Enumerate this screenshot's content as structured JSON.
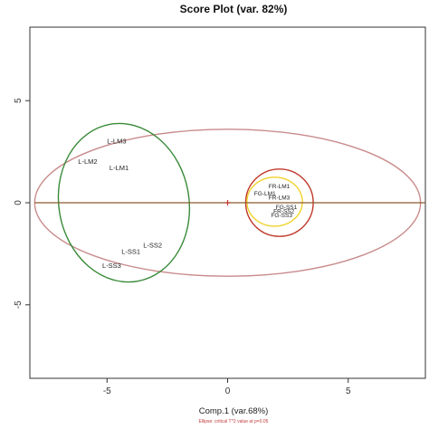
{
  "chart_data": {
    "type": "scatter",
    "title": "Score Plot (var. 82%)",
    "xlabel": "Comp.1 (var.68%)",
    "caption": "Ellipse: critical T^2 value at p=0.05",
    "xlim": [
      -8.2,
      8.2
    ],
    "ylim": [
      -8.6,
      8.6
    ],
    "xticks": [
      -5,
      0,
      5
    ],
    "xtick_labels": [
      "-5",
      "0",
      "5"
    ],
    "yticks": [
      -5,
      0,
      5
    ],
    "ytick_labels": [
      "-5",
      "0",
      "5"
    ],
    "grid": false,
    "points": [
      {
        "label": "L-LM3",
        "x": -5.0,
        "y": 2.9
      },
      {
        "label": "L-LM2",
        "x": -6.2,
        "y": 1.9
      },
      {
        "label": "L-LM1",
        "x": -4.9,
        "y": 1.6
      },
      {
        "label": "L-SS2",
        "x": -3.5,
        "y": -2.2
      },
      {
        "label": "L-SS1",
        "x": -4.4,
        "y": -2.5
      },
      {
        "label": "L-SS3",
        "x": -5.2,
        "y": -3.2
      },
      {
        "label": "FR-LM1",
        "x": 1.7,
        "y": 0.7
      },
      {
        "label": "FG-LM1",
        "x": 1.1,
        "y": 0.35
      },
      {
        "label": "FR-LM3",
        "x": 1.7,
        "y": 0.15
      },
      {
        "label": "FG-SS1",
        "x": 2.0,
        "y": -0.3
      },
      {
        "label": "FR-SS2",
        "x": 1.9,
        "y": -0.5
      },
      {
        "label": "FG-SS3",
        "x": 1.8,
        "y": -0.7
      }
    ],
    "ellipses": [
      {
        "name": "critical-t2",
        "cx": 0,
        "cy": 0,
        "rx": 8.0,
        "ry": 3.6,
        "color": "#c98b8b"
      },
      {
        "name": "group-L",
        "cx": -4.3,
        "cy": 0.0,
        "rx": 2.7,
        "ry": 3.9,
        "angle": 10,
        "color": "#3a8a3a"
      },
      {
        "name": "group-FR-red",
        "cx": 2.15,
        "cy": 0.0,
        "rx": 1.4,
        "ry": 1.65,
        "color": "#c0392b"
      },
      {
        "name": "group-FG-yellow",
        "cx": 1.95,
        "cy": 0.05,
        "rx": 1.15,
        "ry": 1.2,
        "color": "#f1d22a"
      }
    ],
    "center_marker": {
      "x": 0,
      "y": 0,
      "color": "#c0392b"
    },
    "axis_line_color": "#8b5a2b"
  },
  "colors": {
    "frame": "#333333",
    "points": "#222222"
  }
}
